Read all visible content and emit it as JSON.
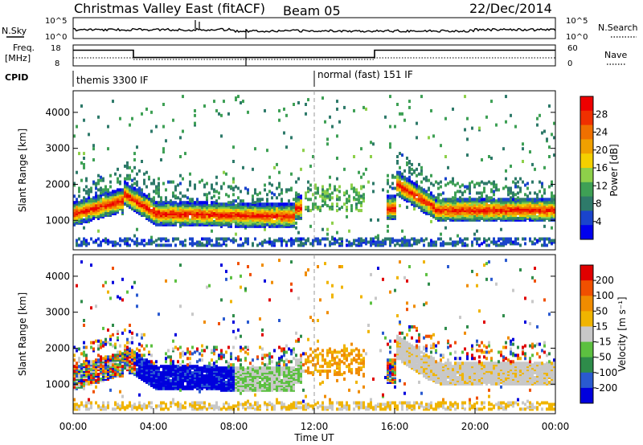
{
  "header": {
    "title": "Christmas Valley East (fitACF)",
    "beam": "Beam 05",
    "date": "22/Dec/2014"
  },
  "nsky_panel": {
    "left_label": "N.Sky",
    "left_ticks": [
      "10^5",
      "10^0"
    ],
    "right_label": "N.Search",
    "right_ticks": [
      "10^5",
      "10^0"
    ]
  },
  "freq_panel": {
    "left_label_1": "Freq.",
    "left_label_2": "[MHz]",
    "left_ticks": [
      "18",
      "8"
    ],
    "right_label": "Nave",
    "right_ticks": [
      "60",
      "0"
    ],
    "steps": [
      {
        "from_h": 0,
        "to_h": 3,
        "mhz": 15.5
      },
      {
        "from_h": 3,
        "to_h": 15,
        "mhz": 12.0
      },
      {
        "from_h": 15,
        "to_h": 24,
        "mhz": 15.5
      }
    ]
  },
  "cpid": {
    "label": "CPID",
    "segments": [
      {
        "text": "themis 3300 IF",
        "from_h": 0
      },
      {
        "text": "normal (fast) 151 IF",
        "from_h": 12
      }
    ]
  },
  "chart_data": [
    {
      "type": "heatmap",
      "name": "Power",
      "ylabel": "Slant Range [km]",
      "yticks": [
        1000,
        2000,
        3000,
        4000
      ],
      "ylim": [
        180,
        4600
      ],
      "xlim": [
        0,
        24
      ],
      "colorbar": {
        "label": "Power [dB]",
        "ticks": [
          "4",
          "8",
          "12",
          "16",
          "20",
          "24",
          "28"
        ],
        "colors": [
          "#0000ee",
          "#1a44cc",
          "#2e7a6a",
          "#3ea055",
          "#8ed04a",
          "#f4d000",
          "#f0a000",
          "#f07000",
          "#f03000",
          "#ee0000"
        ]
      }
    },
    {
      "type": "heatmap",
      "name": "Velocity",
      "ylabel": "Slant Range [km]",
      "yticks": [
        1000,
        2000,
        3000,
        4000
      ],
      "ylim": [
        180,
        4600
      ],
      "xlim": [
        0,
        24
      ],
      "colorbar": {
        "label": "Velocity [m s⁻¹]",
        "ticks": [
          "200",
          "100",
          "50",
          "15",
          "-15",
          "-50",
          "-100",
          "-200"
        ],
        "colors": [
          "#0000dd",
          "#2a5ad0",
          "#2e8c4a",
          "#5cc040",
          "#c8c8c8",
          "#f0b400",
          "#f08c00",
          "#f05000",
          "#e00000"
        ]
      }
    }
  ],
  "time_axis": {
    "label": "Time UT",
    "ticks": [
      "00:00",
      "04:00",
      "08:00",
      "12:00",
      "16:00",
      "20:00",
      "00:00"
    ]
  }
}
